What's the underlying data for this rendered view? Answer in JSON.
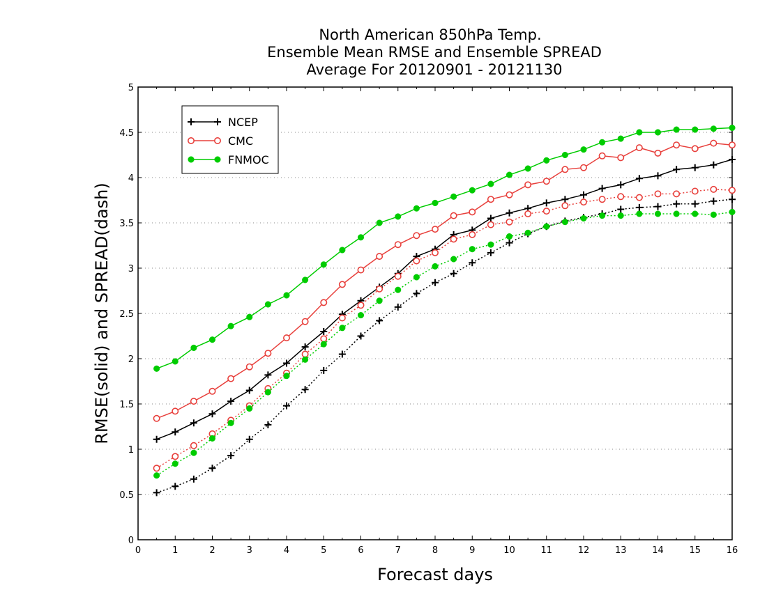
{
  "chart_data": {
    "type": "line",
    "title": [
      "North American 850hPa Temp.",
      "Ensemble Mean RMSE and Ensemble SPREAD",
      "Average For 20120901 - 20121130"
    ],
    "xlabel": "Forecast days",
    "ylabel": "RMSE(solid) and SPREAD(dash)",
    "xlim": [
      0,
      16
    ],
    "ylim": [
      0,
      5
    ],
    "xticks": [
      "0",
      "1",
      "2",
      "3",
      "4",
      "5",
      "6",
      "7",
      "8",
      "9",
      "10",
      "11",
      "12",
      "13",
      "14",
      "15",
      "16"
    ],
    "yticks": [
      "0",
      "0.5",
      "1",
      "1.5",
      "2",
      "2.5",
      "3",
      "3.5",
      "4",
      "4.5",
      "5"
    ],
    "grid": "horizontal dotted",
    "legend_position": "top-left",
    "x": [
      0.5,
      1,
      1.5,
      2,
      2.5,
      3,
      3.5,
      4,
      4.5,
      5,
      5.5,
      6,
      6.5,
      7,
      7.5,
      8,
      8.5,
      9,
      9.5,
      10,
      10.5,
      11,
      11.5,
      12,
      12.5,
      13,
      13.5,
      14,
      14.5,
      15,
      15.5,
      16
    ],
    "series": [
      {
        "name": "NCEP",
        "metric": "RMSE",
        "style": "solid",
        "marker": "plus",
        "color": "#000000",
        "values": [
          1.11,
          1.19,
          1.29,
          1.39,
          1.53,
          1.65,
          1.82,
          1.95,
          2.13,
          2.3,
          2.49,
          2.64,
          2.79,
          2.94,
          3.13,
          3.21,
          3.37,
          3.42,
          3.55,
          3.61,
          3.66,
          3.72,
          3.76,
          3.81,
          3.88,
          3.92,
          3.99,
          4.02,
          4.09,
          4.11,
          4.14,
          4.2
        ]
      },
      {
        "name": "CMC",
        "metric": "RMSE",
        "style": "solid",
        "marker": "open-circle",
        "color": "#e8403c",
        "values": [
          1.34,
          1.42,
          1.53,
          1.64,
          1.78,
          1.91,
          2.06,
          2.23,
          2.41,
          2.62,
          2.82,
          2.98,
          3.13,
          3.26,
          3.36,
          3.43,
          3.58,
          3.62,
          3.76,
          3.81,
          3.92,
          3.96,
          4.09,
          4.11,
          4.24,
          4.22,
          4.33,
          4.27,
          4.36,
          4.32,
          4.38,
          4.36
        ]
      },
      {
        "name": "FNMOC",
        "metric": "RMSE",
        "style": "solid",
        "marker": "filled-circle",
        "color": "#00cc00",
        "values": [
          1.89,
          1.97,
          2.12,
          2.21,
          2.36,
          2.46,
          2.6,
          2.7,
          2.87,
          3.04,
          3.2,
          3.34,
          3.5,
          3.57,
          3.66,
          3.72,
          3.79,
          3.86,
          3.93,
          4.03,
          4.1,
          4.19,
          4.25,
          4.31,
          4.39,
          4.43,
          4.5,
          4.5,
          4.53,
          4.53,
          4.54,
          4.55
        ]
      },
      {
        "name": "NCEP",
        "metric": "SPREAD",
        "style": "dash",
        "marker": "plus",
        "color": "#000000",
        "values": [
          0.52,
          0.59,
          0.67,
          0.79,
          0.93,
          1.11,
          1.27,
          1.48,
          1.66,
          1.87,
          2.05,
          2.25,
          2.42,
          2.57,
          2.72,
          2.84,
          2.94,
          3.06,
          3.17,
          3.28,
          3.38,
          3.46,
          3.52,
          3.56,
          3.6,
          3.65,
          3.67,
          3.68,
          3.71,
          3.71,
          3.74,
          3.76
        ]
      },
      {
        "name": "CMC",
        "metric": "SPREAD",
        "style": "dash",
        "marker": "open-circle",
        "color": "#e8403c",
        "values": [
          0.79,
          0.92,
          1.04,
          1.17,
          1.32,
          1.48,
          1.67,
          1.84,
          2.05,
          2.22,
          2.45,
          2.59,
          2.77,
          2.91,
          3.08,
          3.17,
          3.32,
          3.37,
          3.48,
          3.51,
          3.6,
          3.63,
          3.69,
          3.73,
          3.76,
          3.79,
          3.78,
          3.82,
          3.82,
          3.85,
          3.87,
          3.86
        ]
      },
      {
        "name": "FNMOC",
        "metric": "SPREAD",
        "style": "dash",
        "marker": "filled-circle",
        "color": "#00cc00",
        "values": [
          0.71,
          0.84,
          0.96,
          1.12,
          1.29,
          1.45,
          1.63,
          1.81,
          1.99,
          2.16,
          2.34,
          2.48,
          2.64,
          2.76,
          2.9,
          3.02,
          3.1,
          3.21,
          3.26,
          3.35,
          3.39,
          3.46,
          3.51,
          3.55,
          3.58,
          3.58,
          3.6,
          3.6,
          3.6,
          3.6,
          3.59,
          3.62
        ]
      }
    ],
    "legend": [
      {
        "label": "NCEP",
        "marker": "plus",
        "color": "#000000"
      },
      {
        "label": "CMC",
        "marker": "open-circle",
        "color": "#e8403c"
      },
      {
        "label": "FNMOC",
        "marker": "filled-circle",
        "color": "#00cc00"
      }
    ]
  }
}
